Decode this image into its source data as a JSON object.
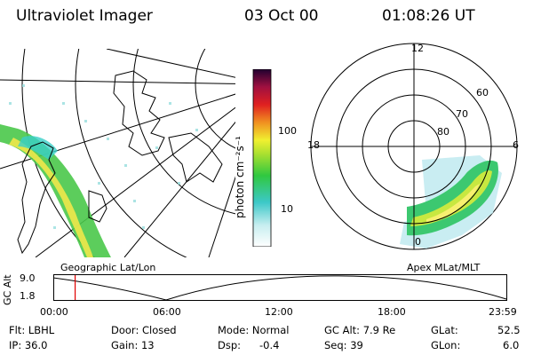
{
  "header": {
    "instrument": "Ultraviolet Imager",
    "date": "03 Oct 00",
    "time": "01:08:26 UT"
  },
  "left_panel": {
    "caption": "Geographic Lat/Lon"
  },
  "colorbar": {
    "unit_label": "photon cm⁻²s⁻¹",
    "ticks": [
      "100",
      "10"
    ]
  },
  "polar_panel": {
    "caption": "Apex MLat/MLT",
    "mlt_labels": {
      "top": "12",
      "left": "18",
      "right": "6",
      "bottom": "0"
    },
    "lat_labels": [
      "60",
      "70",
      "80"
    ]
  },
  "altitude_plot": {
    "ylabel": "GC Alt",
    "yticks": [
      "9.0",
      "1.8"
    ],
    "xticks": [
      "00:00",
      "06:00",
      "12:00",
      "18:00",
      "23:59"
    ],
    "marker_time": "01:08",
    "marker_color": "#e00000"
  },
  "footer": {
    "flt": "Flt: LBHL",
    "ip": "IP: 36.0",
    "door": "Door: Closed",
    "gain": "Gain: 13",
    "mode": "Mode: Normal",
    "dsp": "Dsp:",
    "dsp_value": "-0.4",
    "gc_alt": "GC Alt: 7.9 Re",
    "seq": "Seq: 39",
    "glat_label": "GLat:",
    "glat_value": "52.5",
    "glon_label": "GLon:",
    "glon_value": "6.0"
  }
}
